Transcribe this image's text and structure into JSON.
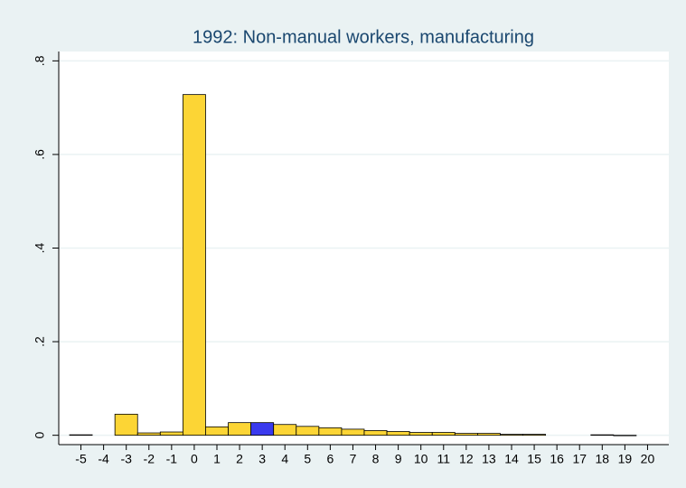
{
  "chart_data": {
    "type": "bar",
    "title": "1992: Non-manual workers, manufacturing",
    "categories": [
      -5,
      -4,
      -3,
      -2,
      -1,
      0,
      1,
      2,
      3,
      4,
      5,
      6,
      7,
      8,
      9,
      10,
      11,
      12,
      13,
      14,
      15,
      16,
      17,
      18,
      19,
      20
    ],
    "values": [
      0.001,
      0,
      0.045,
      0.005,
      0.007,
      0.728,
      0.018,
      0.027,
      0.027,
      0.023,
      0.019,
      0.016,
      0.013,
      0.01,
      0.008,
      0.006,
      0.006,
      0.004,
      0.004,
      0.002,
      0.002,
      0,
      0,
      0.001,
      -0.001,
      0
    ],
    "colors": [
      "#fcd535",
      "#fcd535",
      "#fcd535",
      "#fcd535",
      "#fcd535",
      "#fcd535",
      "#fcd535",
      "#fcd535",
      "#3a3aee",
      "#fcd535",
      "#fcd535",
      "#fcd535",
      "#fcd535",
      "#fcd535",
      "#fcd535",
      "#fcd535",
      "#fcd535",
      "#fcd535",
      "#fcd535",
      "#fcd535",
      "#fcd535",
      "#fcd535",
      "#fcd535",
      "#fcd535",
      "#fcd535",
      "#fcd535"
    ],
    "ylim": [
      -0.02,
      0.82
    ],
    "yticks": [
      0,
      {
        "value": 0.2,
        "label": ".2"
      },
      {
        "value": 0.4,
        "label": ".4"
      },
      {
        "value": 0.6,
        "label": ".6"
      },
      {
        "value": 0.8,
        "label": ".8"
      }
    ],
    "grid": true
  }
}
